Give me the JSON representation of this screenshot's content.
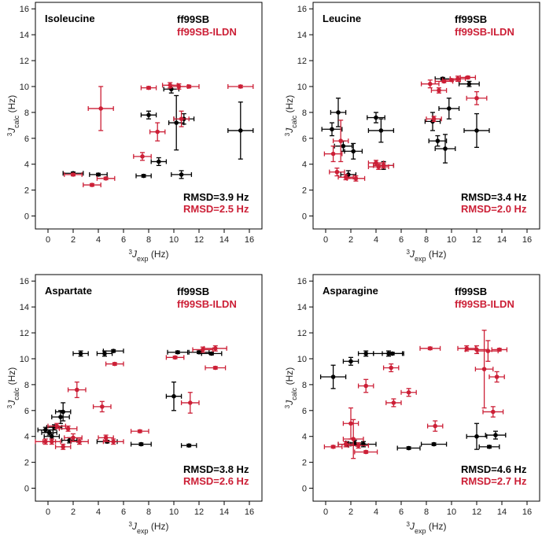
{
  "figure": {
    "axis_x_label": "J",
    "axis_x_super": "3",
    "axis_x_sub": "exp",
    "axis_x_unit": "(Hz)",
    "axis_y_label": "J",
    "axis_y_super": "3",
    "axis_y_sub": "calc",
    "axis_y_unit": "(Hz)",
    "colors": {
      "ff99SB": "#000000",
      "ff99SB-ILDN": "#cc1f36"
    }
  },
  "chart_data": [
    {
      "type": "scatter",
      "title": "Isoleucine",
      "legend_placement": "top-right",
      "xlim": [
        -1,
        17
      ],
      "ylim": [
        -1,
        16.5
      ],
      "xticks": [
        0,
        2,
        4,
        6,
        8,
        10,
        12,
        14,
        16
      ],
      "yticks": [
        0,
        2,
        4,
        6,
        8,
        10,
        12,
        14,
        16
      ],
      "legend": [
        "ff99SB",
        "ff99SB-ILDN"
      ],
      "rmsd": [
        "RMSD=3.9 Hz",
        "RMSD=2.5 Hz"
      ],
      "series": [
        {
          "name": "ff99SB",
          "color": "#000000",
          "points": [
            {
              "x": 2.0,
              "y": 3.3,
              "xe": 0.8,
              "ye": 0.1
            },
            {
              "x": 4.0,
              "y": 3.2,
              "xe": 0.7,
              "ye": 0.1
            },
            {
              "x": 7.6,
              "y": 3.1,
              "xe": 0.6,
              "ye": 0.1
            },
            {
              "x": 8.0,
              "y": 7.8,
              "xe": 0.6,
              "ye": 0.3
            },
            {
              "x": 8.8,
              "y": 4.2,
              "xe": 0.6,
              "ye": 0.3
            },
            {
              "x": 9.8,
              "y": 9.8,
              "xe": 0.6,
              "ye": 0.3
            },
            {
              "x": 10.2,
              "y": 7.2,
              "xe": 0.6,
              "ye": 2.1
            },
            {
              "x": 10.6,
              "y": 3.2,
              "xe": 0.8,
              "ye": 0.3
            },
            {
              "x": 10.8,
              "y": 7.5,
              "xe": 0.8,
              "ye": 0.4
            },
            {
              "x": 15.3,
              "y": 6.6,
              "xe": 1.0,
              "ye": 2.2
            }
          ]
        },
        {
          "name": "ff99SB-ILDN",
          "color": "#cc1f36",
          "points": [
            {
              "x": 2.0,
              "y": 3.2,
              "xe": 0.7,
              "ye": 0.1
            },
            {
              "x": 3.5,
              "y": 2.4,
              "xe": 0.7,
              "ye": 0.1
            },
            {
              "x": 4.2,
              "y": 8.3,
              "xe": 1.0,
              "ye": 1.7
            },
            {
              "x": 4.6,
              "y": 2.9,
              "xe": 0.7,
              "ye": 0.1
            },
            {
              "x": 7.5,
              "y": 4.6,
              "xe": 0.7,
              "ye": 0.3
            },
            {
              "x": 8.0,
              "y": 9.9,
              "xe": 0.6,
              "ye": 0.1
            },
            {
              "x": 8.7,
              "y": 6.5,
              "xe": 0.6,
              "ye": 0.7
            },
            {
              "x": 9.7,
              "y": 10.1,
              "xe": 0.6,
              "ye": 0.2
            },
            {
              "x": 10.4,
              "y": 10.0,
              "xe": 0.7,
              "ye": 0.2
            },
            {
              "x": 10.6,
              "y": 7.5,
              "xe": 0.6,
              "ye": 0.6
            },
            {
              "x": 11.2,
              "y": 10.0,
              "xe": 0.8,
              "ye": 0.1
            },
            {
              "x": 15.3,
              "y": 10.0,
              "xe": 1.0,
              "ye": 0.1
            }
          ]
        }
      ]
    },
    {
      "type": "scatter",
      "title": "Leucine",
      "legend_placement": "top-right",
      "xlim": [
        -1,
        17
      ],
      "ylim": [
        -1,
        16.5
      ],
      "xticks": [
        0,
        2,
        4,
        6,
        8,
        10,
        12,
        14,
        16
      ],
      "yticks": [
        0,
        2,
        4,
        6,
        8,
        10,
        12,
        14,
        16
      ],
      "legend": [
        "ff99SB",
        "ff99SB-ILDN"
      ],
      "rmsd": [
        "RMSD=3.4 Hz",
        "RMSD=2.0 Hz"
      ],
      "series": [
        {
          "name": "ff99SB",
          "color": "#000000",
          "points": [
            {
              "x": 0.5,
              "y": 6.7,
              "xe": 0.8,
              "ye": 0.5
            },
            {
              "x": 1.0,
              "y": 8.0,
              "xe": 0.6,
              "ye": 1.1
            },
            {
              "x": 1.4,
              "y": 5.4,
              "xe": 0.7,
              "ye": 0.4
            },
            {
              "x": 1.8,
              "y": 3.2,
              "xe": 0.6,
              "ye": 0.3
            },
            {
              "x": 2.2,
              "y": 5.0,
              "xe": 0.7,
              "ye": 0.6
            },
            {
              "x": 4.0,
              "y": 7.6,
              "xe": 0.7,
              "ye": 0.4
            },
            {
              "x": 4.4,
              "y": 6.6,
              "xe": 1.0,
              "ye": 0.9
            },
            {
              "x": 4.6,
              "y": 3.9,
              "xe": 0.8,
              "ye": 0.3
            },
            {
              "x": 8.5,
              "y": 7.3,
              "xe": 0.6,
              "ye": 0.7
            },
            {
              "x": 8.9,
              "y": 5.8,
              "xe": 0.7,
              "ye": 0.4
            },
            {
              "x": 9.3,
              "y": 10.6,
              "xe": 0.6,
              "ye": 0.1
            },
            {
              "x": 9.5,
              "y": 5.2,
              "xe": 0.8,
              "ye": 1.1
            },
            {
              "x": 9.8,
              "y": 8.3,
              "xe": 0.8,
              "ye": 0.8
            },
            {
              "x": 11.4,
              "y": 10.2,
              "xe": 0.8,
              "ye": 0.2
            },
            {
              "x": 12.0,
              "y": 6.6,
              "xe": 1.0,
              "ye": 1.3
            }
          ]
        },
        {
          "name": "ff99SB-ILDN",
          "color": "#cc1f36",
          "points": [
            {
              "x": 0.6,
              "y": 4.8,
              "xe": 0.7,
              "ye": 0.6
            },
            {
              "x": 0.9,
              "y": 3.4,
              "xe": 0.6,
              "ye": 0.3
            },
            {
              "x": 1.2,
              "y": 5.8,
              "xe": 0.6,
              "ye": 1.6
            },
            {
              "x": 1.6,
              "y": 3.0,
              "xe": 0.6,
              "ye": 0.2
            },
            {
              "x": 2.4,
              "y": 2.9,
              "xe": 0.7,
              "ye": 0.2
            },
            {
              "x": 4.0,
              "y": 4.1,
              "xe": 0.6,
              "ye": 0.2
            },
            {
              "x": 4.2,
              "y": 3.8,
              "xe": 0.8,
              "ye": 0.2
            },
            {
              "x": 4.6,
              "y": 3.9,
              "xe": 0.8,
              "ye": 0.2
            },
            {
              "x": 8.3,
              "y": 10.2,
              "xe": 0.7,
              "ye": 0.3
            },
            {
              "x": 8.6,
              "y": 7.5,
              "xe": 0.6,
              "ye": 0.2
            },
            {
              "x": 9.0,
              "y": 9.7,
              "xe": 0.6,
              "ye": 0.2
            },
            {
              "x": 9.4,
              "y": 10.4,
              "xe": 0.7,
              "ye": 0.1
            },
            {
              "x": 10.0,
              "y": 10.5,
              "xe": 0.7,
              "ye": 0.1
            },
            {
              "x": 10.5,
              "y": 10.6,
              "xe": 0.6,
              "ye": 0.2
            },
            {
              "x": 11.3,
              "y": 10.7,
              "xe": 0.6,
              "ye": 0.1
            },
            {
              "x": 12.0,
              "y": 9.1,
              "xe": 0.8,
              "ye": 0.5
            }
          ]
        }
      ]
    },
    {
      "type": "scatter",
      "title": "Aspartate",
      "legend_placement": "top-right",
      "xlim": [
        -1,
        17
      ],
      "ylim": [
        -1,
        16.5
      ],
      "xticks": [
        0,
        2,
        4,
        6,
        8,
        10,
        12,
        14,
        16
      ],
      "yticks": [
        0,
        2,
        4,
        6,
        8,
        10,
        12,
        14,
        16
      ],
      "legend": [
        "ff99SB",
        "ff99SB-ILDN"
      ],
      "rmsd": [
        "RMSD=3.8 Hz",
        "RMSD=2.6 Hz"
      ],
      "series": [
        {
          "name": "ff99SB",
          "color": "#000000",
          "points": [
            {
              "x": -0.2,
              "y": 4.5,
              "xe": 0.6,
              "ye": 0.2
            },
            {
              "x": 0.1,
              "y": 4.3,
              "xe": 0.6,
              "ye": 0.2
            },
            {
              "x": 0.3,
              "y": 4.0,
              "xe": 0.6,
              "ye": 0.2
            },
            {
              "x": 0.5,
              "y": 4.7,
              "xe": 0.6,
              "ye": 0.2
            },
            {
              "x": 1.0,
              "y": 5.5,
              "xe": 0.7,
              "ye": 0.5
            },
            {
              "x": 1.2,
              "y": 5.9,
              "xe": 0.6,
              "ye": 0.7
            },
            {
              "x": 1.7,
              "y": 3.7,
              "xe": 0.6,
              "ye": 0.2
            },
            {
              "x": 2.6,
              "y": 10.4,
              "xe": 0.6,
              "ye": 0.2
            },
            {
              "x": 4.5,
              "y": 10.4,
              "xe": 0.6,
              "ye": 0.2
            },
            {
              "x": 5.2,
              "y": 10.6,
              "xe": 0.8,
              "ye": 0.1
            },
            {
              "x": 4.7,
              "y": 3.6,
              "xe": 0.8,
              "ye": 0.1
            },
            {
              "x": 7.4,
              "y": 3.4,
              "xe": 0.8,
              "ye": 0.1
            },
            {
              "x": 10.0,
              "y": 7.1,
              "xe": 0.6,
              "ye": 1.1
            },
            {
              "x": 10.3,
              "y": 10.5,
              "xe": 0.8,
              "ye": 0.1
            },
            {
              "x": 11.2,
              "y": 3.3,
              "xe": 0.6,
              "ye": 0.1
            },
            {
              "x": 12.0,
              "y": 10.5,
              "xe": 0.8,
              "ye": 0.1
            },
            {
              "x": 13.0,
              "y": 10.4,
              "xe": 0.8,
              "ye": 0.1
            }
          ]
        },
        {
          "name": "ff99SB-ILDN",
          "color": "#cc1f36",
          "points": [
            {
              "x": -0.2,
              "y": 3.6,
              "xe": 0.8,
              "ye": 0.2
            },
            {
              "x": 0.3,
              "y": 3.6,
              "xe": 0.7,
              "ye": 0.2
            },
            {
              "x": 0.7,
              "y": 4.8,
              "xe": 0.7,
              "ye": 0.2
            },
            {
              "x": 1.2,
              "y": 3.2,
              "xe": 0.6,
              "ye": 0.2
            },
            {
              "x": 1.6,
              "y": 4.6,
              "xe": 0.7,
              "ye": 0.2
            },
            {
              "x": 2.0,
              "y": 3.9,
              "xe": 0.7,
              "ye": 0.3
            },
            {
              "x": 2.3,
              "y": 7.6,
              "xe": 0.7,
              "ye": 0.6
            },
            {
              "x": 2.5,
              "y": 3.6,
              "xe": 0.7,
              "ye": 0.2
            },
            {
              "x": 4.3,
              "y": 6.3,
              "xe": 0.7,
              "ye": 0.4
            },
            {
              "x": 4.6,
              "y": 3.9,
              "xe": 0.6,
              "ye": 0.2
            },
            {
              "x": 5.2,
              "y": 3.6,
              "xe": 0.8,
              "ye": 0.2
            },
            {
              "x": 5.3,
              "y": 9.6,
              "xe": 0.7,
              "ye": 0.1
            },
            {
              "x": 7.3,
              "y": 4.4,
              "xe": 0.7,
              "ye": 0.1
            },
            {
              "x": 10.1,
              "y": 10.1,
              "xe": 0.7,
              "ye": 0.1
            },
            {
              "x": 11.3,
              "y": 6.6,
              "xe": 0.7,
              "ye": 0.8
            },
            {
              "x": 12.3,
              "y": 10.7,
              "xe": 0.8,
              "ye": 0.2
            },
            {
              "x": 13.3,
              "y": 10.8,
              "xe": 0.9,
              "ye": 0.2
            },
            {
              "x": 13.3,
              "y": 9.3,
              "xe": 0.8,
              "ye": 0.1
            }
          ]
        }
      ]
    },
    {
      "type": "scatter",
      "title": "Asparagine",
      "legend_placement": "top-right",
      "xlim": [
        -1,
        17
      ],
      "ylim": [
        -1,
        16.5
      ],
      "xticks": [
        0,
        2,
        4,
        6,
        8,
        10,
        12,
        14,
        16
      ],
      "yticks": [
        0,
        2,
        4,
        6,
        8,
        10,
        12,
        14,
        16
      ],
      "legend": [
        "ff99SB",
        "ff99SB-ILDN"
      ],
      "rmsd": [
        "RMSD=4.6 Hz",
        "RMSD=2.7 Hz"
      ],
      "series": [
        {
          "name": "ff99SB",
          "color": "#000000",
          "points": [
            {
              "x": 0.6,
              "y": 8.6,
              "xe": 1.0,
              "ye": 0.9
            },
            {
              "x": 1.7,
              "y": 3.4,
              "xe": 0.7,
              "ye": 0.2
            },
            {
              "x": 2.0,
              "y": 9.8,
              "xe": 0.6,
              "ye": 0.3
            },
            {
              "x": 2.3,
              "y": 3.5,
              "xe": 0.7,
              "ye": 0.2
            },
            {
              "x": 3.0,
              "y": 3.4,
              "xe": 1.0,
              "ye": 0.2
            },
            {
              "x": 3.2,
              "y": 10.4,
              "xe": 0.6,
              "ye": 0.2
            },
            {
              "x": 5.0,
              "y": 10.4,
              "xe": 1.2,
              "ye": 0.2
            },
            {
              "x": 5.3,
              "y": 10.4,
              "xe": 0.8,
              "ye": 0.1
            },
            {
              "x": 6.6,
              "y": 3.1,
              "xe": 0.9,
              "ye": 0.1
            },
            {
              "x": 8.6,
              "y": 3.4,
              "xe": 1.0,
              "ye": 0.1
            },
            {
              "x": 12.0,
              "y": 4.0,
              "xe": 0.8,
              "ye": 1.0
            },
            {
              "x": 13.0,
              "y": 3.2,
              "xe": 0.8,
              "ye": 0.1
            },
            {
              "x": 13.5,
              "y": 4.1,
              "xe": 0.8,
              "ye": 0.3
            }
          ]
        },
        {
          "name": "ff99SB-ILDN",
          "color": "#cc1f36",
          "points": [
            {
              "x": 0.6,
              "y": 3.2,
              "xe": 0.7,
              "ye": 0.1
            },
            {
              "x": 1.6,
              "y": 3.4,
              "xe": 0.6,
              "ye": 0.2
            },
            {
              "x": 2.0,
              "y": 5.0,
              "xe": 0.6,
              "ye": 1.2
            },
            {
              "x": 2.2,
              "y": 3.8,
              "xe": 0.8,
              "ye": 1.5
            },
            {
              "x": 2.6,
              "y": 3.3,
              "xe": 0.8,
              "ye": 0.2
            },
            {
              "x": 3.2,
              "y": 7.9,
              "xe": 0.6,
              "ye": 0.5
            },
            {
              "x": 3.2,
              "y": 2.8,
              "xe": 0.9,
              "ye": 0.1
            },
            {
              "x": 5.2,
              "y": 9.3,
              "xe": 0.6,
              "ye": 0.3
            },
            {
              "x": 5.4,
              "y": 6.6,
              "xe": 0.6,
              "ye": 0.3
            },
            {
              "x": 6.6,
              "y": 7.4,
              "xe": 0.6,
              "ye": 0.3
            },
            {
              "x": 8.3,
              "y": 10.8,
              "xe": 0.8,
              "ye": 0.1
            },
            {
              "x": 8.7,
              "y": 4.8,
              "xe": 0.6,
              "ye": 0.4
            },
            {
              "x": 11.2,
              "y": 10.8,
              "xe": 0.7,
              "ye": 0.2
            },
            {
              "x": 12.0,
              "y": 10.7,
              "xe": 0.9,
              "ye": 0.3
            },
            {
              "x": 12.6,
              "y": 9.2,
              "xe": 0.7,
              "ye": 3.0
            },
            {
              "x": 12.9,
              "y": 10.6,
              "xe": 0.8,
              "ye": 0.8
            },
            {
              "x": 13.3,
              "y": 5.9,
              "xe": 0.8,
              "ye": 0.4
            },
            {
              "x": 13.6,
              "y": 8.6,
              "xe": 0.6,
              "ye": 0.4
            },
            {
              "x": 13.8,
              "y": 10.7,
              "xe": 0.6,
              "ye": 0.1
            }
          ]
        }
      ]
    }
  ]
}
